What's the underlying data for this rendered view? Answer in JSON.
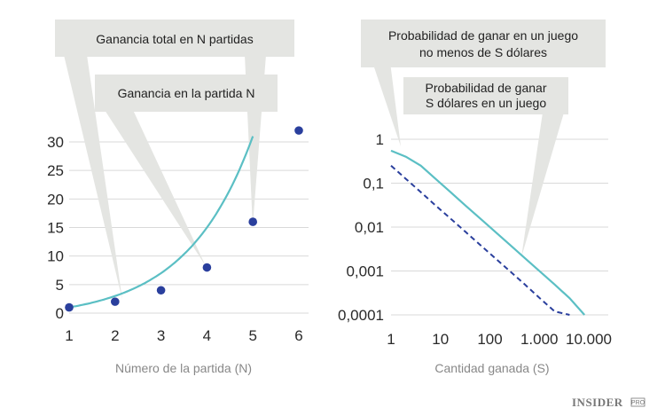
{
  "chart_data": [
    {
      "type": "scatter",
      "xlabel": "Número de la partida (N)",
      "ylabel": "",
      "xlim": [
        1,
        6
      ],
      "ylim": [
        0,
        32
      ],
      "x_ticks": [
        1,
        2,
        3,
        4,
        5,
        6
      ],
      "y_ticks": [
        0,
        5,
        10,
        15,
        20,
        25,
        30
      ],
      "grid": true,
      "series": [
        {
          "name": "Ganancia en la partida N",
          "kind": "scatter",
          "color": "#2a3f9d",
          "x": [
            1,
            2,
            3,
            4,
            5,
            6
          ],
          "y": [
            1,
            2,
            4,
            8,
            16,
            32
          ]
        },
        {
          "name": "Ganancia total en N partidas",
          "kind": "line",
          "color": "#5bbfc4",
          "x": [
            1,
            1.5,
            2,
            2.5,
            3,
            3.5,
            4,
            4.5,
            5
          ],
          "y": [
            1,
            1.83,
            3,
            4.66,
            7,
            10.3,
            15,
            21.6,
            31
          ]
        }
      ],
      "annotations": [
        "Ganancia total en N partidas",
        "Ganancia en la partida N"
      ]
    },
    {
      "type": "line",
      "xscale": "log",
      "yscale": "log",
      "xlabel": "Cantidad ganada (S)",
      "ylabel": "",
      "xlim": [
        1,
        10000
      ],
      "ylim": [
        0.0001,
        1
      ],
      "x_ticks": [
        "1",
        "10",
        "100",
        "1.000",
        "10.000"
      ],
      "y_ticks": [
        "1",
        "0,1",
        "0,01",
        "0,001",
        "0,0001"
      ],
      "grid": true,
      "series": [
        {
          "name": "Probabilidad de ganar en un juego no menos de S dólares",
          "style": "solid",
          "color": "#5bbfc4",
          "x": [
            1,
            2,
            4,
            8,
            16,
            32,
            64,
            128,
            256,
            512,
            1024,
            2048,
            4096,
            8192
          ],
          "y": [
            0.55,
            0.4,
            0.25,
            0.125,
            0.0625,
            0.031,
            0.0156,
            0.0078,
            0.0039,
            0.00195,
            0.00098,
            0.00049,
            0.00024,
            0.0001
          ]
        },
        {
          "name": "Probabilidad de ganar S dólares en un juego",
          "style": "dashed",
          "color": "#2a3f9d",
          "x": [
            1,
            2,
            4,
            8,
            16,
            32,
            64,
            128,
            256,
            512,
            1024,
            2048,
            4096
          ],
          "y": [
            0.25,
            0.125,
            0.0625,
            0.031,
            0.0156,
            0.0078,
            0.0039,
            0.00195,
            0.00098,
            0.00049,
            0.00024,
            0.00012,
            0.0001
          ]
        }
      ],
      "annotations": [
        "Probabilidad de ganar en un juego no menos de S dólares",
        "Probabilidad de ganar S dólares en un juego"
      ]
    }
  ],
  "callouts": {
    "left_total": "Ganancia total en N partidas",
    "left_game": "Ganancia en la partida N",
    "right_atleast_line1": "Probabilidad de ganar en un juego",
    "right_atleast_line2": "no menos de S dólares",
    "right_exact_line1": "Probabilidad de ganar",
    "right_exact_line2": "S dólares en un juego"
  },
  "logo": {
    "main": "INSIDER",
    "sub": "PRO"
  },
  "colors": {
    "line": "#5bbfc4",
    "dots": "#2a3f9d",
    "grid": "#d9d9d9",
    "callout_bg": "#e4e5e2"
  }
}
